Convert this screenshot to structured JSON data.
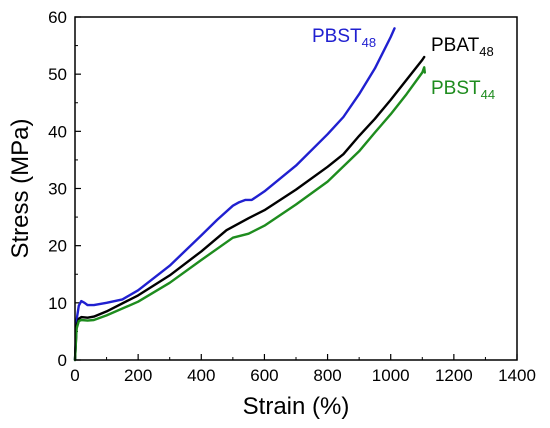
{
  "chart_data": {
    "type": "line",
    "xlabel": "Strain (%)",
    "ylabel": "Stress (MPa)",
    "xlim": [
      0,
      1400
    ],
    "ylim": [
      0,
      60
    ],
    "xticks": [
      0,
      200,
      400,
      600,
      800,
      1000,
      1200,
      1400
    ],
    "yticks": [
      0,
      10,
      20,
      30,
      40,
      50,
      60
    ],
    "grid": false,
    "series": [
      {
        "name": "PBST48",
        "label_main": "PBST",
        "label_sub": "48",
        "color": "#2020d0",
        "points": [
          [
            0,
            0
          ],
          [
            5,
            7
          ],
          [
            12,
            9.5
          ],
          [
            20,
            10.3
          ],
          [
            30,
            10
          ],
          [
            40,
            9.6
          ],
          [
            60,
            9.6
          ],
          [
            100,
            10
          ],
          [
            150,
            10.6
          ],
          [
            200,
            12.2
          ],
          [
            300,
            16.5
          ],
          [
            400,
            21.8
          ],
          [
            450,
            24.5
          ],
          [
            500,
            27
          ],
          [
            520,
            27.6
          ],
          [
            540,
            28
          ],
          [
            560,
            28
          ],
          [
            600,
            29.5
          ],
          [
            700,
            34
          ],
          [
            800,
            39.5
          ],
          [
            850,
            42.5
          ],
          [
            900,
            46.5
          ],
          [
            950,
            51
          ],
          [
            1000,
            56.5
          ],
          [
            1012,
            58
          ]
        ]
      },
      {
        "name": "PBAT48",
        "label_main": "PBAT",
        "label_sub": "48",
        "color": "#000000",
        "points": [
          [
            0,
            0
          ],
          [
            5,
            6
          ],
          [
            12,
            7.2
          ],
          [
            20,
            7.5
          ],
          [
            40,
            7.4
          ],
          [
            60,
            7.6
          ],
          [
            100,
            8.5
          ],
          [
            200,
            11.3
          ],
          [
            300,
            14.8
          ],
          [
            400,
            19
          ],
          [
            480,
            22.7
          ],
          [
            550,
            24.8
          ],
          [
            600,
            26.2
          ],
          [
            700,
            29.8
          ],
          [
            800,
            33.8
          ],
          [
            850,
            36
          ],
          [
            900,
            39.2
          ],
          [
            950,
            42.2
          ],
          [
            1000,
            45.5
          ],
          [
            1050,
            49
          ],
          [
            1100,
            52.5
          ],
          [
            1106,
            53
          ]
        ]
      },
      {
        "name": "PBST44",
        "label_main": "PBST",
        "label_sub": "44",
        "color": "#1e8c1e",
        "points": [
          [
            0,
            0
          ],
          [
            5,
            5.5
          ],
          [
            12,
            6.8
          ],
          [
            20,
            7
          ],
          [
            40,
            6.9
          ],
          [
            60,
            7
          ],
          [
            100,
            7.8
          ],
          [
            200,
            10.2
          ],
          [
            300,
            13.5
          ],
          [
            400,
            17.5
          ],
          [
            500,
            21.4
          ],
          [
            550,
            22.1
          ],
          [
            600,
            23.5
          ],
          [
            700,
            27.2
          ],
          [
            800,
            31.2
          ],
          [
            900,
            36.5
          ],
          [
            950,
            39.8
          ],
          [
            1000,
            43
          ],
          [
            1050,
            46.5
          ],
          [
            1100,
            50.3
          ],
          [
            1106,
            51.2
          ],
          [
            1108,
            50.3
          ]
        ]
      }
    ]
  }
}
